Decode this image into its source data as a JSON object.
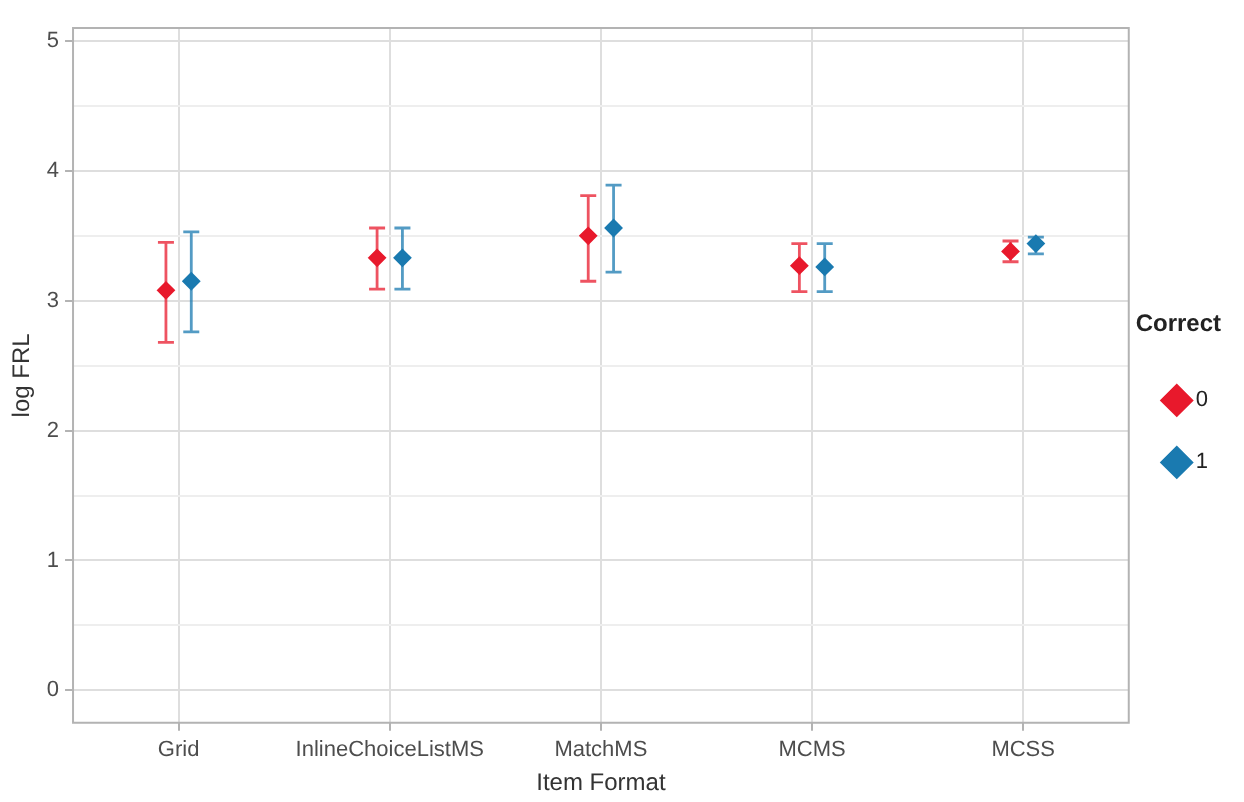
{
  "chart_data": {
    "type": "scatter",
    "xlabel": "Item Format",
    "ylabel": "log FRL",
    "legend_title": "Correct",
    "legend": "right",
    "grid": true,
    "marker": "diamond",
    "categories": [
      "Grid",
      "InlineChoiceListMS",
      "MatchMS",
      "MCMS",
      "MCSS"
    ],
    "ylim": [
      -0.25,
      5.1
    ],
    "yticks": [
      0,
      {
        "value": 0.5,
        "label": null
      },
      1,
      {
        "value": 1.5,
        "label": null
      },
      2,
      {
        "value": 2.5,
        "label": null
      },
      3,
      {
        "value": 3.5,
        "label": null
      },
      4,
      {
        "value": 4.5,
        "label": null
      },
      5
    ],
    "series": [
      {
        "name": "0",
        "color": "#e8192c",
        "values": [
          3.08,
          3.33,
          3.5,
          3.27,
          3.38
        ],
        "errors": [
          [
            2.68,
            3.45
          ],
          [
            3.09,
            3.56
          ],
          [
            3.15,
            3.81
          ],
          [
            3.07,
            3.44
          ],
          [
            3.3,
            3.46
          ]
        ]
      },
      {
        "name": "1",
        "color": "#1a7ab0",
        "values": [
          3.15,
          3.33,
          3.56,
          3.26,
          3.44
        ],
        "errors": [
          [
            2.76,
            3.53
          ],
          [
            3.09,
            3.56
          ],
          [
            3.22,
            3.89
          ],
          [
            3.07,
            3.44
          ],
          [
            3.36,
            3.49
          ]
        ]
      }
    ]
  }
}
